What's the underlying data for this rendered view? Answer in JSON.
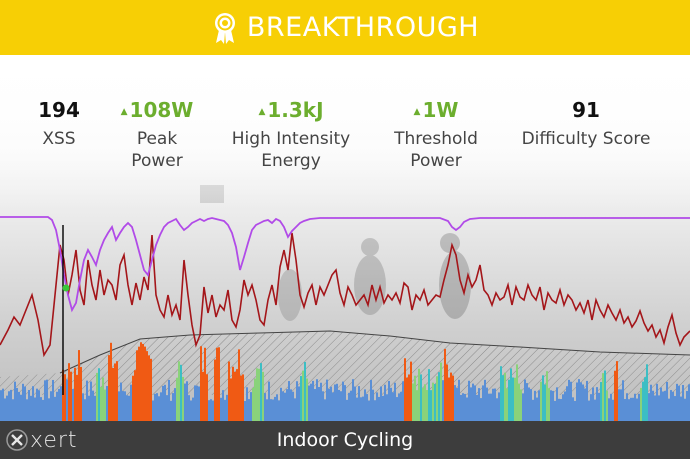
{
  "banner": {
    "title": "BREAKTHROUGH",
    "icon": "award-ribbon-icon",
    "background": "#f7cf05"
  },
  "stats": [
    {
      "value": "194",
      "label": "XSS",
      "trend": "none"
    },
    {
      "value": "108W",
      "label": "Peak\nPower",
      "trend": "up"
    },
    {
      "value": "1.3kJ",
      "label": "High Intensity\nEnergy",
      "trend": "up"
    },
    {
      "value": "1W",
      "label": "Threshold\nPower",
      "trend": "up"
    },
    {
      "value": "91",
      "label": "Difficulty Score",
      "trend": "none"
    }
  ],
  "colors": {
    "trend_up": "#6cae2e",
    "mpa_line": "#b14be8",
    "power_line": "#a4161a",
    "bars_low": "#5a8fd6",
    "bars_mid": "#3cbec4",
    "bars_peak": "#f05a14",
    "footer": "#3d3d3d"
  },
  "footer": {
    "title": "Indoor Cycling",
    "logo": "xert"
  }
}
